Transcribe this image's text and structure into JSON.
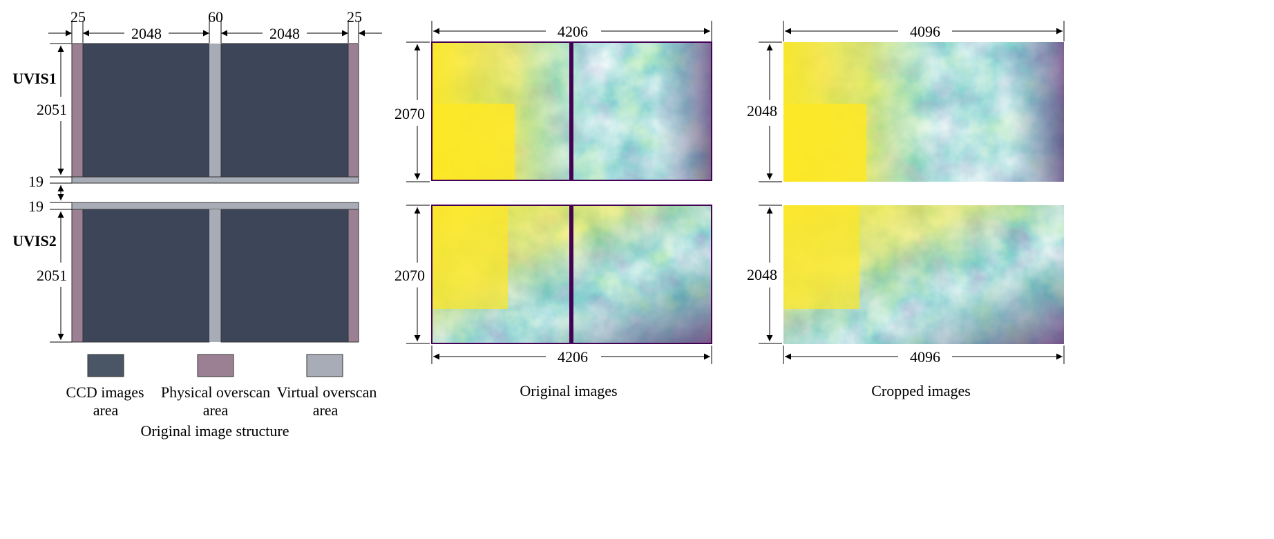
{
  "structure": {
    "caption": "Original image structure",
    "widths": {
      "left_physical": "25",
      "left_ccd": "2048",
      "gap_virtual": "60",
      "right_ccd": "2048",
      "right_physical": "25"
    },
    "uvis1": {
      "label": "UVIS1",
      "height": "2051",
      "virtual_rows": "19"
    },
    "uvis2": {
      "label": "UVIS2",
      "height": "2051",
      "virtual_rows": "19"
    },
    "legend": [
      {
        "line1": "CCD images",
        "line2": "area",
        "color": "#4a5566"
      },
      {
        "line1": "Physical overscan",
        "line2": "area",
        "color": "#9b7f93"
      },
      {
        "line1": "Virtual overscan",
        "line2": "area",
        "color": "#a7acb6"
      }
    ],
    "colors": {
      "ccd": "#3d4558",
      "physical": "#9b7f93",
      "virtual": "#a7acb6"
    }
  },
  "original": {
    "caption": "Original images",
    "width_top": "4206",
    "width_bottom": "4206",
    "height_top": "2070",
    "height_bottom": "2070"
  },
  "cropped": {
    "caption": "Cropped images",
    "width_top": "4096",
    "width_bottom": "4096",
    "height_top": "2048",
    "height_bottom": "2048"
  },
  "palette": {
    "yellow": "#fde725",
    "green": "#5ec962",
    "teal": "#21918c",
    "blue": "#3b528b",
    "purple": "#440154"
  }
}
